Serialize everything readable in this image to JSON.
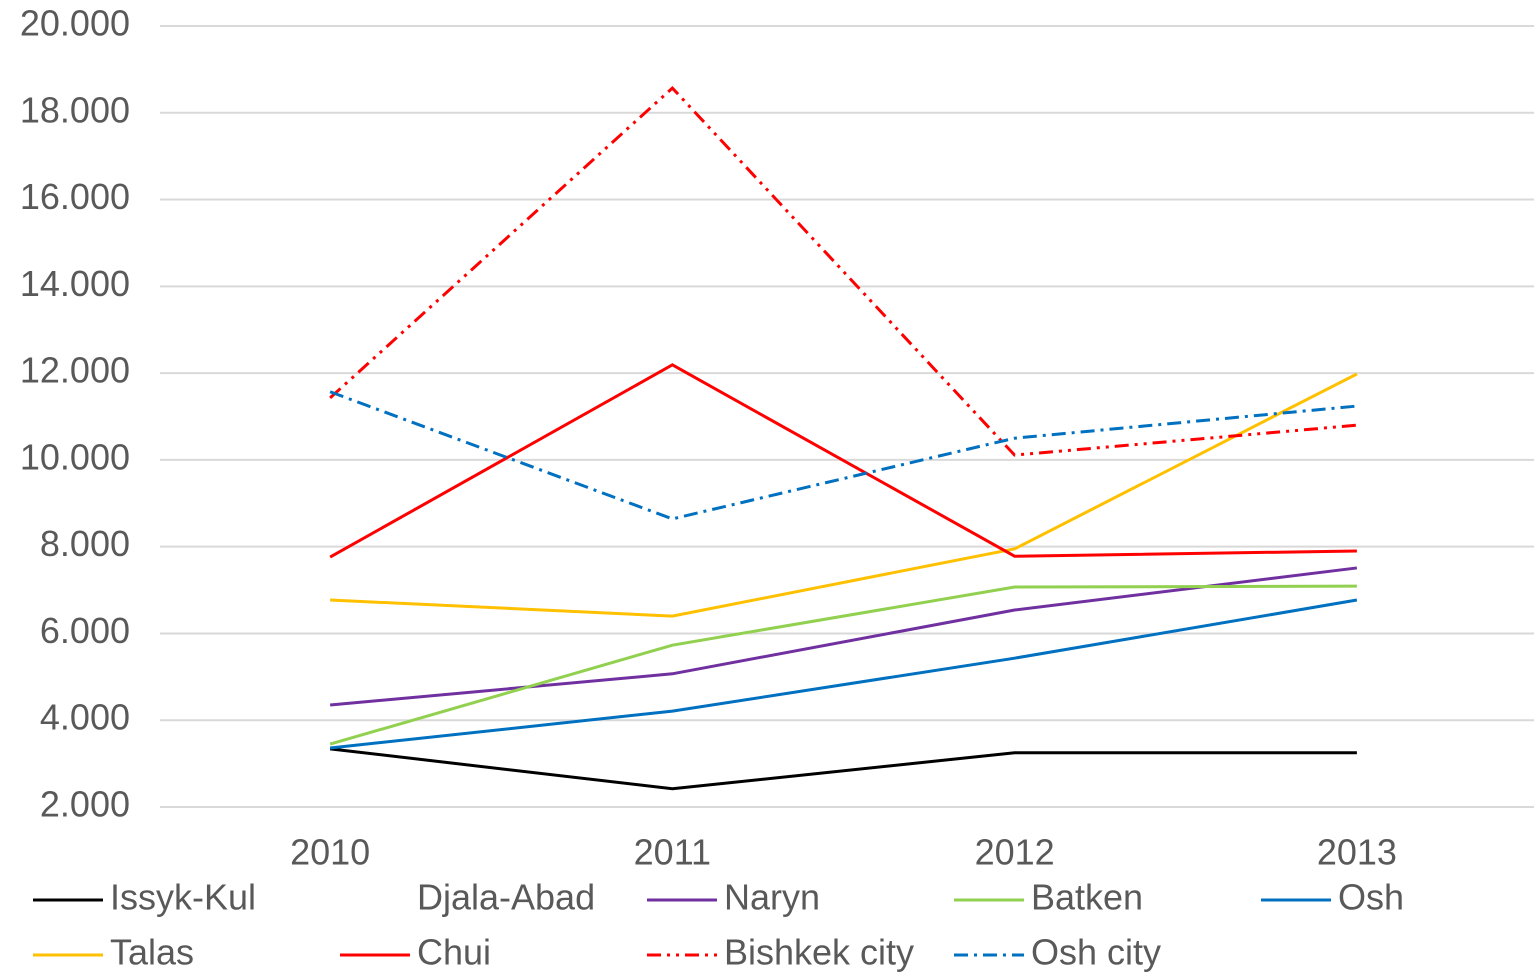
{
  "chart_data": {
    "type": "line",
    "categories": [
      "2010",
      "2011",
      "2012",
      "2013"
    ],
    "series": [
      {
        "name": "Issyk-Kul",
        "color": "#000000",
        "dash": "solid",
        "values": [
          3340,
          2420,
          3250,
          3250
        ]
      },
      {
        "name": "Djala-Abad",
        "values": [
          null,
          null,
          null,
          null
        ]
      },
      {
        "name": "Naryn",
        "color": "#7030a0",
        "dash": "solid",
        "values": [
          4350,
          5070,
          6540,
          7510
        ]
      },
      {
        "name": "Batken",
        "color": "#92d050",
        "dash": "solid",
        "values": [
          3450,
          5730,
          7070,
          7090
        ]
      },
      {
        "name": "Osh",
        "color": "#0070c0",
        "dash": "solid",
        "values": [
          3360,
          4210,
          5430,
          6770
        ]
      },
      {
        "name": "Talas",
        "color": "#ffc000",
        "dash": "solid",
        "values": [
          6770,
          6400,
          7950,
          11980
        ]
      },
      {
        "name": "Chui",
        "color": "#ff0000",
        "dash": "solid",
        "values": [
          7760,
          12190,
          7780,
          7900
        ]
      },
      {
        "name": "Bishkek city",
        "color": "#ff0000",
        "dash": "dashdotdot",
        "values": [
          11430,
          18570,
          10110,
          10800
        ]
      },
      {
        "name": "Osh city",
        "color": "#0070c0",
        "dash": "dashdot",
        "values": [
          11570,
          8640,
          10500,
          11240
        ]
      }
    ],
    "ylim": [
      2000,
      20000
    ],
    "yticks": [
      {
        "value": 2000,
        "label": "2.000"
      },
      {
        "value": 4000,
        "label": "4.000"
      },
      {
        "value": 6000,
        "label": "6.000"
      },
      {
        "value": 8000,
        "label": "8.000"
      },
      {
        "value": 10000,
        "label": "10.000"
      },
      {
        "value": 12000,
        "label": "12.000"
      },
      {
        "value": 14000,
        "label": "14.000"
      },
      {
        "value": 16000,
        "label": "16.000"
      },
      {
        "value": 18000,
        "label": "18.000"
      },
      {
        "value": 20000,
        "label": "20.000"
      }
    ],
    "grid": true,
    "legend": "bottom"
  }
}
